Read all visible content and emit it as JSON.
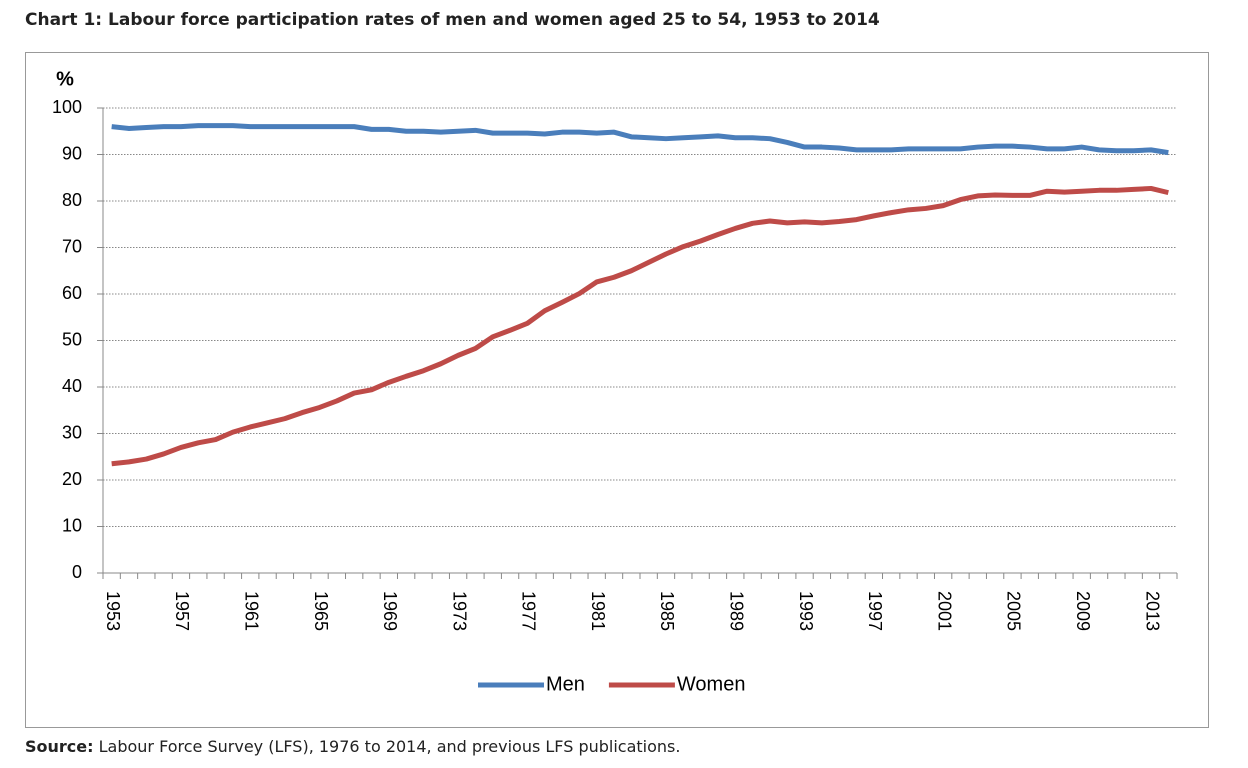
{
  "chart_data": {
    "type": "line",
    "title": "Chart 1: Labour force participation rates of men and women aged 25 to 54, 1953 to 2014",
    "y_label": "%",
    "categories": [
      "1953",
      null,
      null,
      null,
      "1957",
      null,
      null,
      null,
      "1961",
      null,
      null,
      null,
      "1965",
      null,
      null,
      null,
      "1969",
      null,
      null,
      null,
      "1973",
      null,
      null,
      null,
      "1977",
      null,
      null,
      null,
      "1981",
      null,
      null,
      null,
      "1985",
      null,
      null,
      null,
      "1989",
      null,
      null,
      null,
      "1993",
      null,
      null,
      null,
      "1997",
      null,
      null,
      null,
      "2001",
      null,
      null,
      null,
      "2005",
      null,
      null,
      null,
      "2009",
      null,
      null,
      null,
      "2013",
      null
    ],
    "series": [
      {
        "name": "Men",
        "color": "#4a7ebb",
        "values": [
          96,
          95.6,
          95.8,
          96,
          96,
          96.2,
          96.2,
          96.2,
          96,
          96,
          96,
          96,
          96,
          96,
          96,
          95.4,
          95.4,
          95,
          95,
          94.8,
          95,
          95.2,
          94.6,
          94.6,
          94.6,
          94.4,
          94.8,
          94.8,
          94.6,
          94.8,
          93.8,
          93.6,
          93.4,
          93.6,
          93.8,
          94,
          93.6,
          93.6,
          93.4,
          92.6,
          91.6,
          91.6,
          91.4,
          91,
          91,
          91,
          91.2,
          91.2,
          91.2,
          91.2,
          91.6,
          91.8,
          91.8,
          91.6,
          91.2,
          91.2,
          91.6,
          91,
          90.8,
          90.8,
          91,
          90.4
        ]
      },
      {
        "name": "Women",
        "color": "#be4b48",
        "values": [
          23.5,
          23.9,
          24.5,
          25.6,
          27,
          28,
          28.7,
          30.3,
          31.4,
          32.3,
          33.2,
          34.5,
          35.6,
          37,
          38.7,
          39.4,
          41,
          42.3,
          43.5,
          45,
          46.8,
          48.3,
          50.8,
          52.2,
          53.7,
          56.4,
          58.2,
          60.1,
          62.6,
          63.6,
          65,
          66.8,
          68.6,
          70.2,
          71.4,
          72.8,
          74.1,
          75.2,
          75.7,
          75.3,
          75.5,
          75.3,
          75.6,
          76,
          76.8,
          77.5,
          78.1,
          78.4,
          79,
          80.3,
          81.1,
          81.3,
          81.2,
          81.2,
          82.1,
          81.9,
          82.1,
          82.3,
          82.3,
          82.5,
          82.7,
          81.8
        ]
      }
    ],
    "ylim": [
      0,
      100
    ],
    "yticks": [
      0,
      10,
      20,
      30,
      40,
      50,
      60,
      70,
      80,
      90,
      100
    ],
    "grid": true,
    "legend": "bottom"
  },
  "source_label": "Source:",
  "source_text": "Labour Force Survey (LFS), 1976 to 2014, and previous LFS publications."
}
